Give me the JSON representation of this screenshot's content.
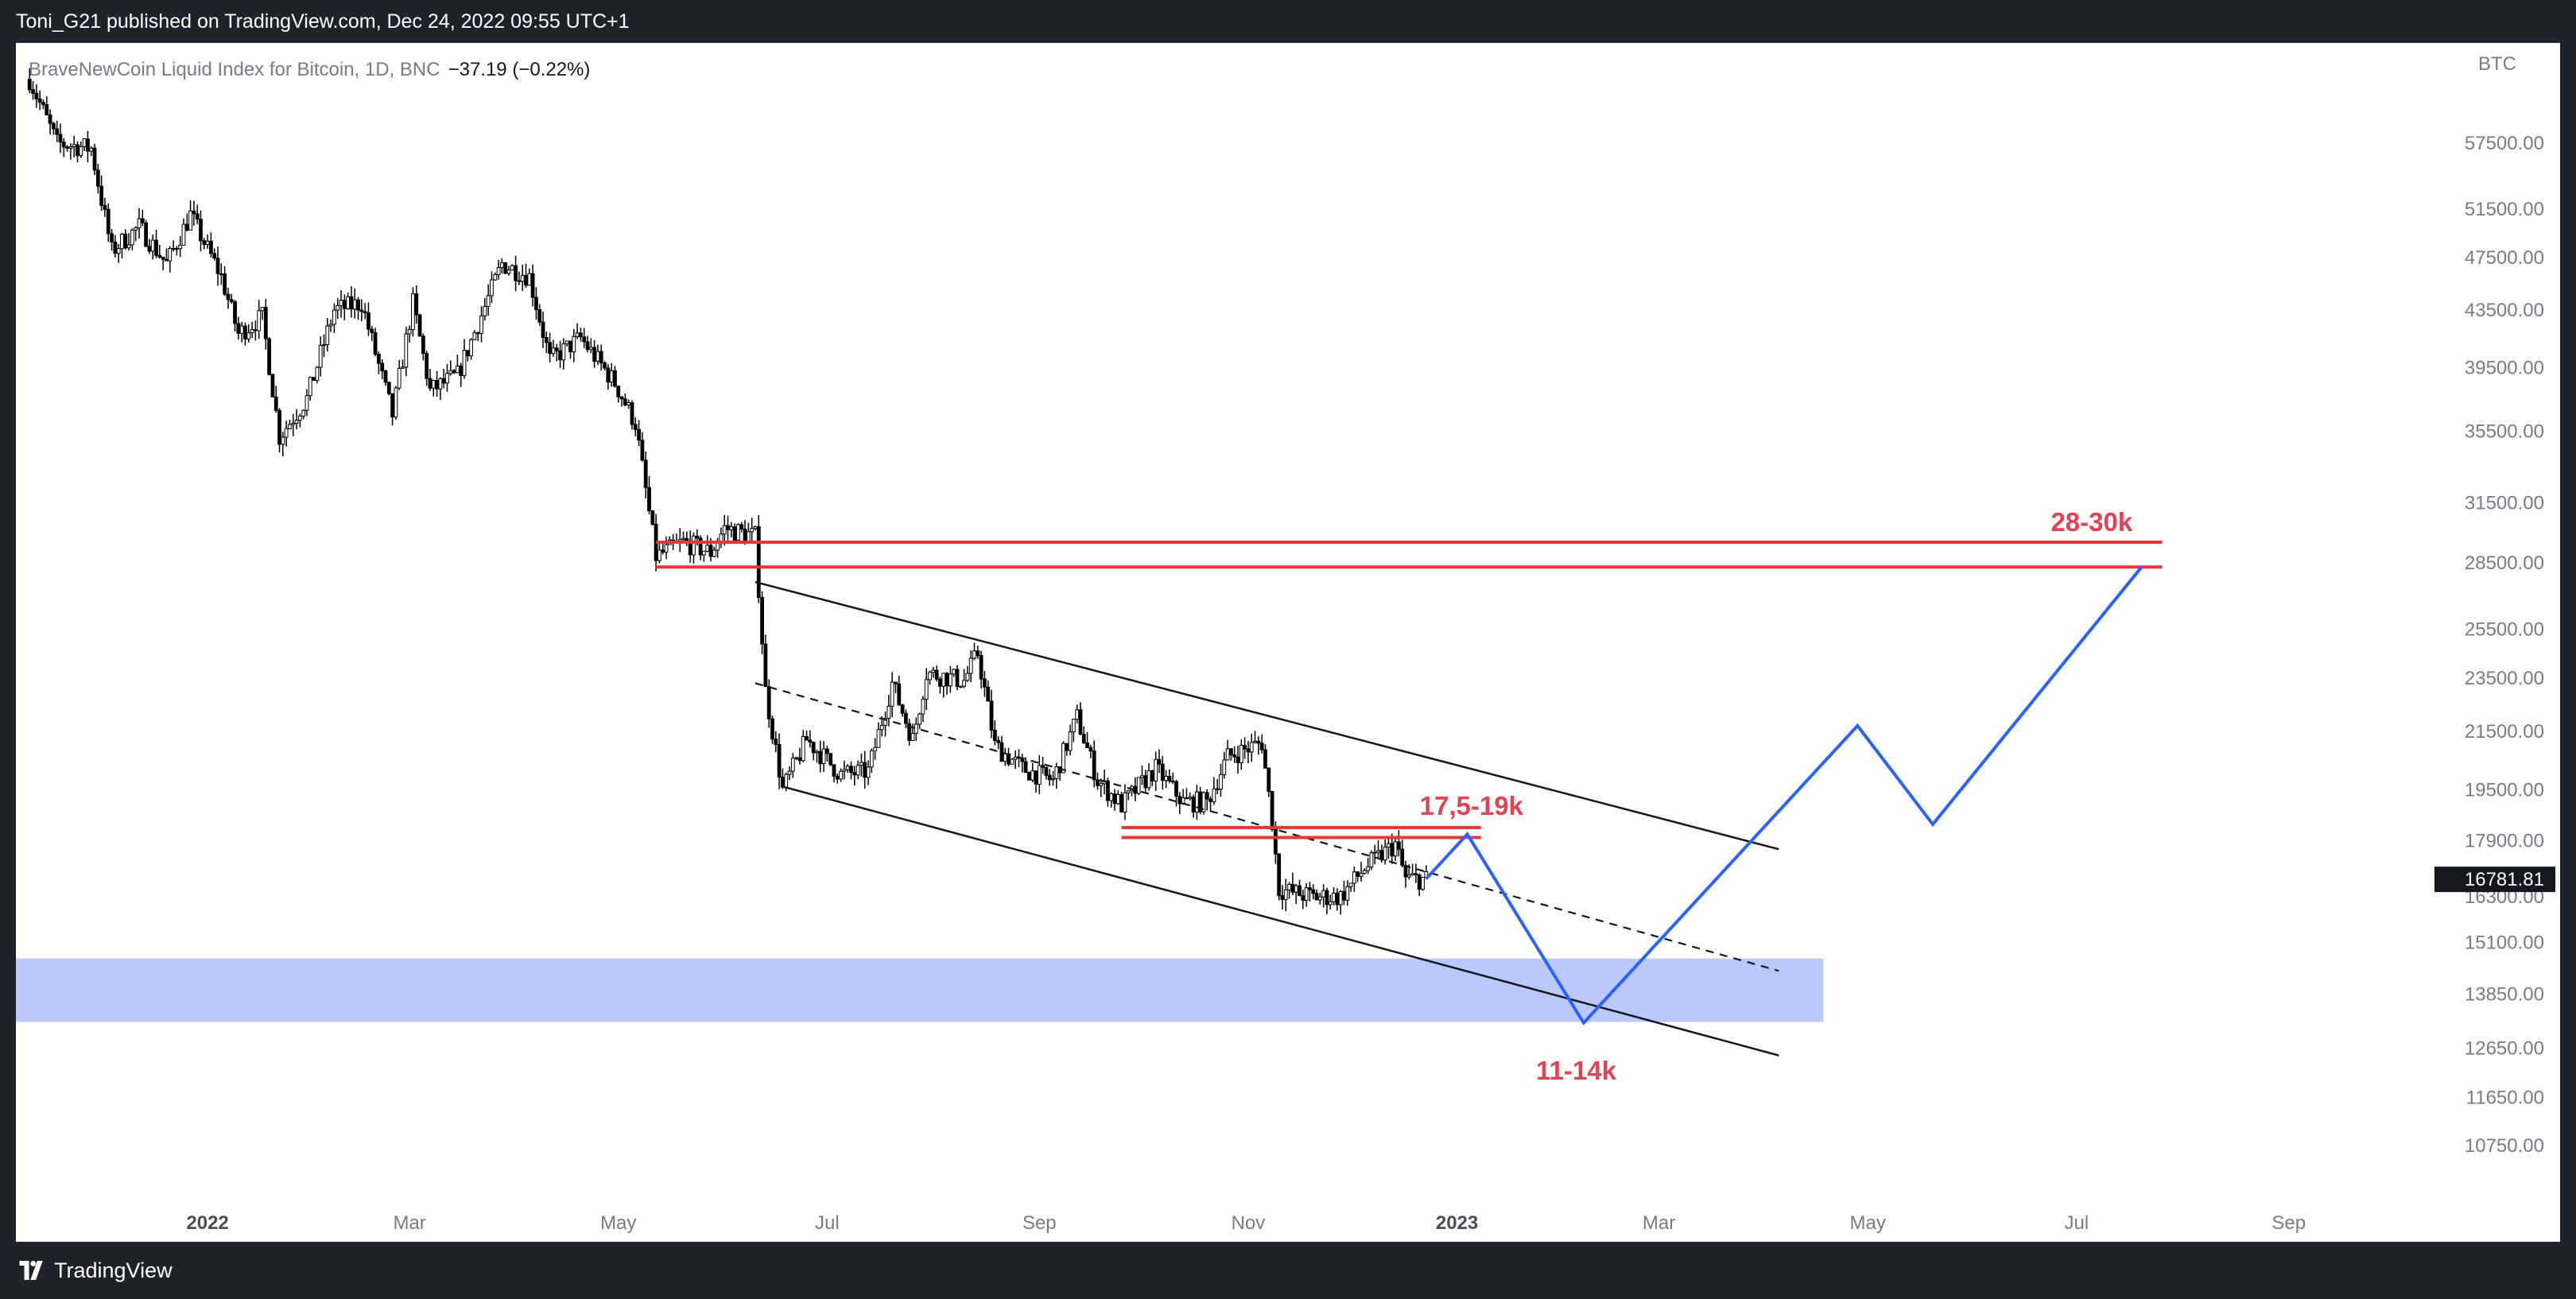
{
  "header": {
    "publish_info": "Toni_G21 published on TradingView.com, Dec 24, 2022 09:55 UTC+1"
  },
  "legend": {
    "symbol": "BraveNewCoin Liquid Index for Bitcoin, 1D, BNC",
    "change": "−37.19 (−0.22%)"
  },
  "footer": {
    "brand": "TradingView",
    "logo_icon": "tradingview-logo-icon"
  },
  "chart_data": {
    "type": "candlestick",
    "title": "",
    "currency_label": "BTC",
    "y_scale": "log",
    "ylim": [
      9500,
      68000
    ],
    "xlim": [
      "2021-11-06",
      "2023-09-28"
    ],
    "x_ticks": [
      {
        "date": "2022-01-01",
        "label": "2022",
        "bold": true
      },
      {
        "date": "2022-03-01",
        "label": "Mar",
        "bold": false
      },
      {
        "date": "2022-05-01",
        "label": "May",
        "bold": false
      },
      {
        "date": "2022-07-01",
        "label": "Jul",
        "bold": false
      },
      {
        "date": "2022-09-01",
        "label": "Sep",
        "bold": false
      },
      {
        "date": "2022-11-01",
        "label": "Nov",
        "bold": false
      },
      {
        "date": "2023-01-01",
        "label": "2023",
        "bold": true
      },
      {
        "date": "2023-03-01",
        "label": "Mar",
        "bold": false
      },
      {
        "date": "2023-05-01",
        "label": "May",
        "bold": false
      },
      {
        "date": "2023-07-01",
        "label": "Jul",
        "bold": false
      },
      {
        "date": "2023-09-01",
        "label": "Sep",
        "bold": false
      }
    ],
    "y_ticks": [
      "57500.00",
      "51500.00",
      "47500.00",
      "43500.00",
      "39500.00",
      "35500.00",
      "31500.00",
      "28500.00",
      "25500.00",
      "23500.00",
      "21500.00",
      "19500.00",
      "17900.00",
      "16300.00",
      "15100.00",
      "13850.00",
      "12650.00",
      "11650.00",
      "10750.00"
    ],
    "last_price": {
      "value": 16781.81,
      "label": "16781.81"
    },
    "price_path": [
      [
        "2021-11-10",
        64000
      ],
      [
        "2021-11-18",
        57500
      ],
      [
        "2021-11-28",
        57000
      ],
      [
        "2021-12-04",
        48000
      ],
      [
        "2021-12-12",
        50000
      ],
      [
        "2021-12-20",
        47000
      ],
      [
        "2021-12-27",
        51000
      ],
      [
        "2022-01-05",
        46000
      ],
      [
        "2022-01-10",
        41800
      ],
      [
        "2022-01-17",
        43000
      ],
      [
        "2022-01-22",
        35200
      ],
      [
        "2022-01-30",
        37500
      ],
      [
        "2022-02-07",
        43500
      ],
      [
        "2022-02-15",
        44000
      ],
      [
        "2022-02-24",
        36500
      ],
      [
        "2022-03-02",
        44000
      ],
      [
        "2022-03-07",
        38000
      ],
      [
        "2022-03-15",
        39000
      ],
      [
        "2022-03-28",
        47000
      ],
      [
        "2022-04-05",
        46000
      ],
      [
        "2022-04-11",
        40000
      ],
      [
        "2022-04-20",
        41500
      ],
      [
        "2022-04-30",
        38500
      ],
      [
        "2022-05-06",
        36000
      ],
      [
        "2022-05-10",
        31000
      ],
      [
        "2022-05-12",
        28800
      ],
      [
        "2022-05-20",
        29500
      ],
      [
        "2022-05-28",
        29000
      ],
      [
        "2022-06-01",
        30200
      ],
      [
        "2022-06-10",
        29800
      ],
      [
        "2022-06-13",
        23000
      ],
      [
        "2022-06-18",
        19500
      ],
      [
        "2022-06-25",
        21200
      ],
      [
        "2022-07-05",
        20000
      ],
      [
        "2022-07-13",
        20100
      ],
      [
        "2022-07-20",
        23300
      ],
      [
        "2022-07-26",
        21200
      ],
      [
        "2022-07-30",
        23700
      ],
      [
        "2022-08-10",
        23400
      ],
      [
        "2022-08-14",
        24500
      ],
      [
        "2022-08-19",
        21000
      ],
      [
        "2022-08-27",
        20200
      ],
      [
        "2022-09-05",
        19800
      ],
      [
        "2022-09-12",
        22000
      ],
      [
        "2022-09-18",
        19800
      ],
      [
        "2022-09-25",
        19000
      ],
      [
        "2022-10-05",
        20200
      ],
      [
        "2022-10-13",
        19100
      ],
      [
        "2022-10-20",
        19100
      ],
      [
        "2022-10-26",
        20600
      ],
      [
        "2022-11-05",
        21100
      ],
      [
        "2022-11-08",
        18500
      ],
      [
        "2022-11-10",
        16500
      ],
      [
        "2022-11-20",
        16300
      ],
      [
        "2022-11-28",
        16300
      ],
      [
        "2022-12-05",
        17100
      ],
      [
        "2022-12-14",
        17800
      ],
      [
        "2022-12-17",
        16800
      ],
      [
        "2022-12-23",
        16781.81
      ]
    ],
    "annotations": {
      "resistance_zone": {
        "label": "28-30k",
        "upper": 29500,
        "lower": 28300,
        "from": "2022-05-12",
        "to": "2023-07-26"
      },
      "local_resistance": {
        "label": "17,5-19k",
        "upper": 18300,
        "lower": 18000,
        "from": "2022-09-25",
        "to": "2023-01-08"
      },
      "support_zone": {
        "label": "11-14k",
        "upper": 14700,
        "lower": 13220,
        "from": "2021-11-06",
        "to": "2023-04-18"
      },
      "channel_upper": [
        [
          "2022-06-10",
          27600
        ],
        [
          "2023-04-05",
          17650
        ]
      ],
      "channel_lower": [
        [
          "2022-06-18",
          19600
        ],
        [
          "2023-04-05",
          12500
        ]
      ],
      "channel_mid": [
        [
          "2022-06-10",
          23300
        ],
        [
          "2023-04-05",
          14400
        ]
      ],
      "projection": [
        [
          "2022-12-23",
          16800
        ],
        [
          "2023-01-04",
          18100
        ],
        [
          "2023-02-07",
          13200
        ],
        [
          "2023-04-28",
          21700
        ],
        [
          "2023-05-20",
          18400
        ],
        [
          "2023-07-20",
          28300
        ]
      ]
    }
  },
  "colors": {
    "background": "#ffffff",
    "frame": "#1e222d",
    "candles": "#000000",
    "level_lines": "#e53935",
    "level_labels": "#e04352",
    "support_zone": "#bac8fb",
    "projection": "#2962ff",
    "axis_text": "#787b86",
    "price_tag_bg": "#131722"
  }
}
